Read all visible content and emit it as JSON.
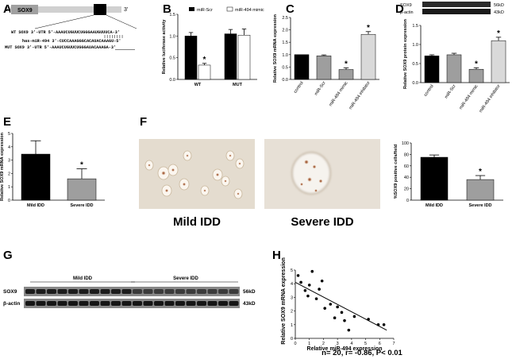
{
  "panel_letters": {
    "a": "A",
    "b": "B",
    "c": "C",
    "d": "D",
    "e": "E",
    "f": "F",
    "g": "G",
    "h": "H"
  },
  "panel_a": {
    "five_prime": "5'",
    "three_prime": "3'",
    "gene_label": "SOX9",
    "wt_seq": "WT SOX9 3'-UTR 5'-AAAUCUGUUCUGGGAAUGUUUCA-3'",
    "mir_seq": "has-miR-494 3'-CUCCAAAGGGCACAUACAAAGU-5'",
    "mut_seq": "MUT SOX9 3'-UTR 5'-AAAUCUGUUCUGGGAUACAAAGA-3'"
  },
  "colors": {
    "black": "#000000",
    "grey": "#9e9e9e",
    "light": "#d9d9d9",
    "bar_gene": "#000000"
  },
  "chart_data": [
    {
      "id": "B",
      "type": "bar",
      "ylabel": "Relative luciferase activity",
      "ylim": [
        0,
        1.5
      ],
      "yticks": [
        0.0,
        0.5,
        1.0,
        1.5
      ],
      "tick_labels": [
        "0.0",
        "0.5",
        "1.0",
        "1.5"
      ],
      "categories": [
        "WT",
        "MUT"
      ],
      "series": [
        {
          "name": "miR-Scr",
          "values": [
            1.0,
            1.05
          ],
          "errors": [
            0.08,
            0.1
          ]
        },
        {
          "name": "miR-494 mimic",
          "values": [
            0.33,
            1.02
          ],
          "errors": [
            0.04,
            0.14
          ]
        }
      ],
      "significance": [
        "*",
        ""
      ]
    },
    {
      "id": "C",
      "type": "bar",
      "ylabel": "Relative SOX9 mRNA expression",
      "ylim": [
        0,
        2.5
      ],
      "yticks": [
        0.0,
        0.5,
        1.0,
        1.5,
        2.0,
        2.5
      ],
      "tick_labels": [
        "0.0",
        "0.5",
        "1.0",
        "1.5",
        "2.0",
        "2.5"
      ],
      "categories": [
        "control",
        "miR-Scr",
        "miR-494 mimic",
        "miR-494 inhibitor"
      ],
      "values": [
        1.0,
        0.95,
        0.4,
        1.82
      ],
      "errors": [
        0.0,
        0.04,
        0.07,
        0.11
      ],
      "significance": [
        "",
        "",
        "*",
        "*"
      ]
    },
    {
      "id": "D",
      "type": "bar",
      "ylabel": "Relative SOX9 protein expression",
      "ylim": [
        0,
        1.5
      ],
      "yticks": [
        0.0,
        0.5,
        1.0,
        1.5
      ],
      "tick_labels": [
        "0.0",
        "0.5",
        "1.0",
        "1.5"
      ],
      "categories": [
        "control",
        "miR-Scr",
        "miR-494 mimic",
        "miR-494 inhibitor"
      ],
      "values": [
        0.7,
        0.73,
        0.35,
        1.1
      ],
      "errors": [
        0.03,
        0.04,
        0.04,
        0.09
      ],
      "significance": [
        "",
        "",
        "*",
        "*"
      ],
      "blot_labels": [
        "SOX9",
        "β-actin"
      ],
      "blot_sizes": [
        "56kD",
        "43kD"
      ]
    },
    {
      "id": "E",
      "type": "bar",
      "ylabel": "Relative SOX9 mRNA expression",
      "ylim": [
        0,
        5
      ],
      "yticks": [
        0,
        1,
        2,
        3,
        4,
        5
      ],
      "tick_labels": [
        "0",
        "1",
        "2",
        "3",
        "4",
        "5"
      ],
      "categories": [
        "Mild IDD",
        "Severe IDD"
      ],
      "values": [
        3.45,
        1.6
      ],
      "errors": [
        1.0,
        0.75
      ],
      "significance": [
        "",
        "*"
      ]
    },
    {
      "id": "F",
      "type": "bar",
      "ylabel": "%SOX9 positive cells/field",
      "ylim": [
        0,
        100
      ],
      "yticks": [
        0,
        20,
        40,
        60,
        80,
        100
      ],
      "tick_labels": [
        "0",
        "20",
        "40",
        "60",
        "80",
        "100"
      ],
      "categories": [
        "Mild IDD",
        "Severe IDD"
      ],
      "values": [
        75,
        36
      ],
      "errors": [
        4,
        7
      ],
      "significance": [
        "",
        "*"
      ],
      "image_captions": [
        "Mild IDD",
        "Severe IDD"
      ]
    },
    {
      "id": "H",
      "type": "scatter",
      "xlabel": "Relative miR-494 expression",
      "ylabel": "Relative SOX9 mRNA expression",
      "xlim": [
        0,
        7
      ],
      "ylim": [
        0,
        5
      ],
      "xticks": [
        0,
        1,
        2,
        3,
        4,
        5,
        6,
        7
      ],
      "yticks": [
        0,
        1,
        2,
        3,
        4,
        5
      ],
      "x": [
        0.2,
        0.4,
        0.7,
        0.9,
        1.0,
        1.2,
        1.5,
        1.7,
        1.9,
        2.1,
        2.5,
        2.8,
        3.0,
        3.3,
        3.5,
        3.8,
        4.2,
        5.2,
        5.9,
        6.3
      ],
      "y": [
        4.6,
        4.1,
        3.5,
        3.1,
        3.9,
        4.9,
        2.9,
        3.6,
        4.2,
        2.2,
        2.5,
        1.5,
        2.3,
        1.9,
        1.3,
        0.6,
        1.6,
        1.4,
        1.0,
        1.0
      ],
      "fit": {
        "x": [
          0,
          6.5
        ],
        "y": [
          4.1,
          0.6
        ]
      },
      "stats": "n= 20, r= -0.86, P< 0.01"
    }
  ],
  "panel_g": {
    "groups": [
      "Mild IDD",
      "Severe IDD"
    ],
    "rows": [
      "SOX9",
      "β-actin"
    ],
    "sizes": [
      "56kD",
      "43kD"
    ]
  }
}
